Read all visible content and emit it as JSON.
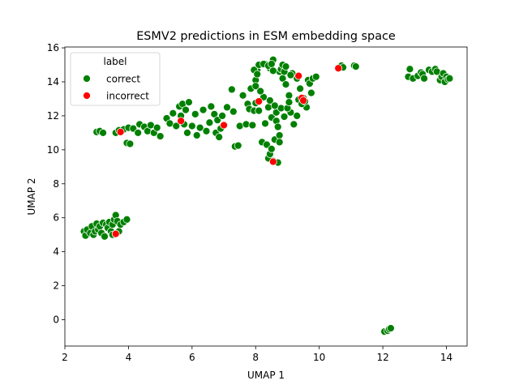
{
  "chart_data": {
    "type": "scatter",
    "title": "ESMV2 predictions in ESM embedding space",
    "xlabel": "UMAP 1",
    "ylabel": "UMAP 2",
    "xlim": [
      2.0,
      14.65
    ],
    "ylim": [
      -1.55,
      16.05
    ],
    "xticks": [
      2,
      4,
      6,
      8,
      10,
      12,
      14
    ],
    "yticks": [
      0,
      2,
      4,
      6,
      8,
      10,
      12,
      14,
      16
    ],
    "grid": false,
    "legend": {
      "title": "label",
      "placement": "top-left"
    },
    "series": [
      {
        "name": "correct",
        "color": "#008000",
        "points": [
          [
            2.6,
            5.2
          ],
          [
            2.65,
            4.95
          ],
          [
            2.7,
            5.3
          ],
          [
            2.8,
            5.1
          ],
          [
            2.85,
            5.5
          ],
          [
            2.9,
            5.0
          ],
          [
            2.95,
            5.2
          ],
          [
            3.0,
            5.65
          ],
          [
            3.05,
            5.3
          ],
          [
            3.1,
            5.5
          ],
          [
            3.15,
            5.1
          ],
          [
            3.2,
            5.7
          ],
          [
            3.25,
            4.9
          ],
          [
            3.3,
            5.6
          ],
          [
            3.35,
            5.4
          ],
          [
            3.4,
            5.75
          ],
          [
            3.45,
            5.2
          ],
          [
            3.5,
            5.6
          ],
          [
            3.55,
            5.9
          ],
          [
            3.6,
            6.15
          ],
          [
            3.65,
            5.8
          ],
          [
            3.7,
            5.2
          ],
          [
            3.75,
            5.6
          ],
          [
            3.85,
            5.75
          ],
          [
            3.95,
            5.9
          ],
          [
            3.5,
            5.0
          ],
          [
            3.6,
            5.05
          ],
          [
            3.0,
            11.05
          ],
          [
            3.1,
            11.1
          ],
          [
            3.2,
            11.0
          ],
          [
            3.6,
            11.0
          ],
          [
            3.7,
            11.15
          ],
          [
            3.85,
            11.2
          ],
          [
            3.95,
            10.4
          ],
          [
            4.05,
            10.35
          ],
          [
            4.0,
            11.3
          ],
          [
            4.15,
            11.25
          ],
          [
            4.3,
            11.0
          ],
          [
            4.35,
            11.5
          ],
          [
            4.5,
            11.35
          ],
          [
            4.6,
            11.1
          ],
          [
            4.7,
            11.45
          ],
          [
            4.8,
            11.0
          ],
          [
            4.9,
            11.3
          ],
          [
            5.0,
            10.8
          ],
          [
            5.2,
            11.85
          ],
          [
            5.3,
            11.55
          ],
          [
            5.4,
            12.15
          ],
          [
            5.5,
            11.4
          ],
          [
            5.6,
            12.55
          ],
          [
            5.65,
            12.0
          ],
          [
            5.7,
            12.7
          ],
          [
            5.75,
            11.5
          ],
          [
            5.8,
            12.35
          ],
          [
            5.85,
            11.0
          ],
          [
            5.9,
            12.8
          ],
          [
            6.0,
            11.4
          ],
          [
            6.1,
            12.1
          ],
          [
            6.15,
            10.85
          ],
          [
            6.25,
            11.3
          ],
          [
            6.35,
            12.35
          ],
          [
            6.45,
            11.1
          ],
          [
            6.55,
            11.6
          ],
          [
            6.6,
            12.55
          ],
          [
            6.7,
            12.1
          ],
          [
            6.75,
            11.0
          ],
          [
            6.8,
            11.75
          ],
          [
            6.85,
            10.75
          ],
          [
            6.9,
            11.25
          ],
          [
            6.95,
            12.0
          ],
          [
            7.1,
            12.5
          ],
          [
            7.25,
            13.55
          ],
          [
            7.3,
            12.25
          ],
          [
            7.35,
            10.2
          ],
          [
            7.45,
            10.25
          ],
          [
            7.5,
            11.4
          ],
          [
            7.6,
            13.2
          ],
          [
            7.7,
            11.5
          ],
          [
            7.75,
            12.7
          ],
          [
            7.8,
            12.4
          ],
          [
            7.85,
            13.6
          ],
          [
            7.9,
            11.45
          ],
          [
            7.95,
            12.3
          ],
          [
            8.0,
            12.75
          ],
          [
            8.05,
            14.7
          ],
          [
            8.1,
            12.3
          ],
          [
            8.15,
            15.0
          ],
          [
            8.2,
            10.45
          ],
          [
            8.25,
            13.1
          ],
          [
            8.3,
            11.55
          ],
          [
            8.3,
            15.05
          ],
          [
            8.35,
            10.3
          ],
          [
            8.4,
            12.5
          ],
          [
            8.45,
            14.8
          ],
          [
            8.5,
            11.9
          ],
          [
            8.55,
            9.35
          ],
          [
            8.55,
            15.3
          ],
          [
            8.6,
            10.6
          ],
          [
            8.65,
            12.2
          ],
          [
            8.7,
            9.25
          ],
          [
            8.75,
            14.6
          ],
          [
            8.8,
            12.45
          ],
          [
            8.85,
            14.2
          ],
          [
            8.9,
            11.95
          ],
          [
            8.95,
            13.85
          ],
          [
            9.05,
            13.2
          ],
          [
            9.1,
            12.2
          ],
          [
            9.15,
            14.5
          ],
          [
            9.2,
            11.5
          ],
          [
            9.3,
            12.0
          ],
          [
            9.4,
            13.6
          ],
          [
            9.5,
            13.05
          ],
          [
            9.6,
            12.5
          ],
          [
            9.65,
            14.1
          ],
          [
            9.7,
            13.9
          ],
          [
            9.75,
            13.35
          ],
          [
            9.8,
            14.2
          ],
          [
            9.9,
            14.3
          ],
          [
            7.95,
            14.7
          ],
          [
            8.0,
            14.1
          ],
          [
            8.0,
            13.75
          ],
          [
            8.05,
            14.45
          ],
          [
            8.1,
            15.0
          ],
          [
            8.15,
            13.45
          ],
          [
            8.25,
            15.05
          ],
          [
            8.4,
            14.95
          ],
          [
            8.45,
            12.9
          ],
          [
            8.5,
            15.05
          ],
          [
            8.55,
            14.65
          ],
          [
            8.6,
            12.6
          ],
          [
            8.65,
            11.7
          ],
          [
            8.7,
            11.35
          ],
          [
            8.75,
            10.85
          ],
          [
            8.75,
            10.45
          ],
          [
            8.8,
            14.75
          ],
          [
            8.85,
            15.0
          ],
          [
            8.9,
            14.6
          ],
          [
            8.95,
            14.9
          ],
          [
            9.0,
            12.45
          ],
          [
            9.05,
            12.8
          ],
          [
            9.1,
            14.4
          ],
          [
            9.3,
            14.2
          ],
          [
            9.35,
            12.95
          ],
          [
            9.45,
            12.7
          ],
          [
            9.55,
            12.85
          ],
          [
            8.4,
            9.5
          ],
          [
            8.45,
            9.75
          ],
          [
            8.5,
            10.05
          ],
          [
            10.7,
            14.95
          ],
          [
            10.75,
            14.85
          ],
          [
            11.1,
            14.95
          ],
          [
            11.15,
            14.9
          ],
          [
            12.8,
            14.3
          ],
          [
            12.85,
            14.75
          ],
          [
            12.95,
            14.2
          ],
          [
            13.1,
            14.35
          ],
          [
            13.2,
            14.55
          ],
          [
            13.25,
            14.45
          ],
          [
            13.3,
            14.2
          ],
          [
            13.45,
            14.7
          ],
          [
            13.55,
            14.6
          ],
          [
            13.65,
            14.75
          ],
          [
            13.7,
            14.6
          ],
          [
            13.8,
            14.1
          ],
          [
            13.85,
            14.3
          ],
          [
            13.9,
            14.5
          ],
          [
            13.95,
            14.0
          ],
          [
            14.0,
            14.3
          ],
          [
            14.05,
            14.15
          ],
          [
            14.1,
            14.2
          ],
          [
            12.05,
            -0.7
          ],
          [
            12.15,
            -0.65
          ],
          [
            12.2,
            -0.55
          ],
          [
            12.25,
            -0.5
          ]
        ]
      },
      {
        "name": "incorrect",
        "color": "#ff0000",
        "points": [
          [
            3.6,
            5.05
          ],
          [
            3.75,
            11.05
          ],
          [
            5.65,
            11.7
          ],
          [
            7.0,
            11.45
          ],
          [
            8.1,
            12.85
          ],
          [
            8.55,
            9.3
          ],
          [
            9.35,
            14.35
          ],
          [
            9.45,
            13.05
          ],
          [
            9.5,
            12.9
          ],
          [
            10.6,
            14.8
          ]
        ]
      }
    ]
  }
}
